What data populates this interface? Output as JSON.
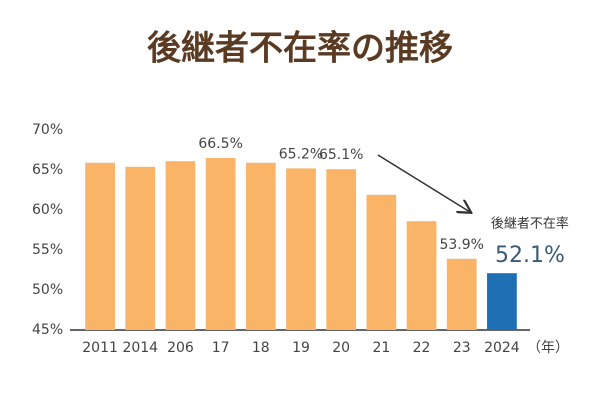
{
  "chart_data": {
    "type": "bar",
    "title": "後継者不在率の推移",
    "categories": [
      "2011",
      "2014",
      "206",
      "17",
      "18",
      "19",
      "20",
      "21",
      "22",
      "23",
      "2024"
    ],
    "values": [
      65.9,
      65.4,
      66.1,
      66.5,
      65.9,
      65.2,
      65.1,
      61.9,
      58.6,
      53.9,
      52.1
    ],
    "value_labels": [
      null,
      null,
      null,
      "66.5%",
      null,
      "65.2%",
      "65.1%",
      null,
      null,
      "53.9%",
      "52.1%"
    ],
    "colors": [
      "#f9b468",
      "#f9b468",
      "#f9b468",
      "#f9b468",
      "#f9b468",
      "#f9b468",
      "#f9b468",
      "#f9b468",
      "#f9b468",
      "#f9b468",
      "#1f6fb5"
    ],
    "annotation": "後継者不在率",
    "x_unit": "（年）",
    "ylim": [
      45,
      70
    ],
    "yticks": [
      {
        "value": 45,
        "label": "45%"
      },
      {
        "value": 50,
        "label": "50%"
      },
      {
        "value": 55,
        "label": "55%"
      },
      {
        "value": 60,
        "label": "60%"
      },
      {
        "value": 65,
        "label": "65%"
      },
      {
        "value": 70,
        "label": "70%"
      }
    ]
  }
}
